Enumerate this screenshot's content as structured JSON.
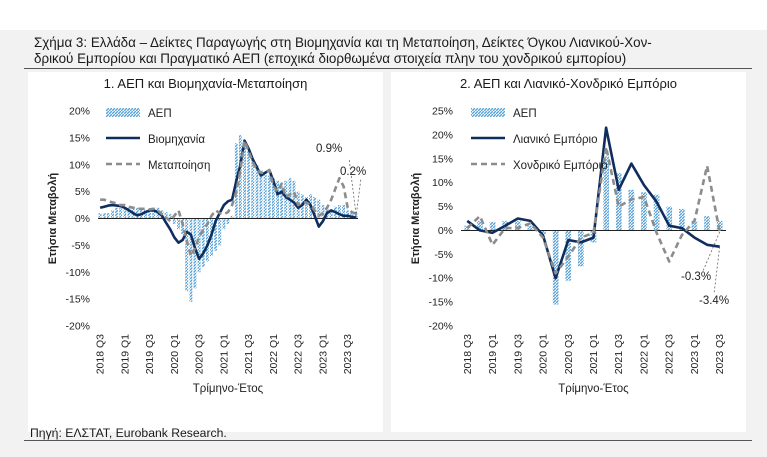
{
  "figure": {
    "title": "Σχήμα 3: Ελλάδα – Δείκτες Παραγωγής στη Βιομηχανία και τη Μεταποίηση, Δείκτες Όγκου Λιανικού-Χον-\nδρικού Εμπορίου και Πραγματικό ΑΕΠ (εποχικά διορθωμένα στοιχεία πλην του χονδρικού εμπορίου)",
    "source": "Πηγή: ΕΛΣΤΑΤ, Eurobank Research."
  },
  "colors": {
    "gdp_bar": "#5aa3d6",
    "line_dark": "#0f2d5f",
    "line_dashed": "#8c8c8c"
  },
  "chart_data": [
    {
      "type": "bar",
      "title": "1. ΑΕΠ και Βιομηχανία-Μεταποίηση",
      "ylabel": "Ετήσια Μεταβολή",
      "xlabel": "Τρίμηνο-Έτος",
      "ylim": [
        -20,
        20
      ],
      "yticks": [
        "-20%",
        "-15%",
        "-10%",
        "-5%",
        "0%",
        "5%",
        "10%",
        "15%",
        "20%"
      ],
      "x_tick_labels": [
        "2018 Q3",
        "2019 Q1",
        "2019 Q3",
        "2020 Q1",
        "2020 Q3",
        "2021 Q1",
        "2021 Q3",
        "2022 Q1",
        "2022 Q3",
        "2023 Q1",
        "2023 Q3"
      ],
      "x": [
        "2018 M7",
        "2018 M8",
        "2018 M9",
        "2018 M10",
        "2018 M11",
        "2018 M12",
        "2019 M1",
        "2019 M2",
        "2019 M3",
        "2019 M4",
        "2019 M5",
        "2019 M6",
        "2019 M7",
        "2019 M8",
        "2019 M9",
        "2019 M10",
        "2019 M11",
        "2019 M12",
        "2020 M1",
        "2020 M2",
        "2020 M3",
        "2020 M4",
        "2020 M5",
        "2020 M6",
        "2020 M7",
        "2020 M8",
        "2020 M9",
        "2020 M10",
        "2020 M11",
        "2020 M12",
        "2021 M1",
        "2021 M2",
        "2021 M3",
        "2021 M4",
        "2021 M5",
        "2021 M6",
        "2021 M7",
        "2021 M8",
        "2021 M9",
        "2021 M10",
        "2021 M11",
        "2021 M12",
        "2022 M1",
        "2022 M2",
        "2022 M3",
        "2022 M4",
        "2022 M5",
        "2022 M6",
        "2022 M7",
        "2022 M8",
        "2022 M9",
        "2022 M10",
        "2022 M11",
        "2022 M12",
        "2023 M1",
        "2023 M2",
        "2023 M3",
        "2023 M4",
        "2023 M5",
        "2023 M6",
        "2023 M7",
        "2023 M8",
        "2023 M9"
      ],
      "series": [
        {
          "name": "ΑΕΠ",
          "kind": "bar",
          "values": [
            1.0,
            1.0,
            1.0,
            1.5,
            2.0,
            2.0,
            2.0,
            2.2,
            2.2,
            2.0,
            1.8,
            1.6,
            1.8,
            1.8,
            2.0,
            1.5,
            1.2,
            0.8,
            -1.0,
            -2.0,
            -3.0,
            -13.5,
            -15.5,
            -13.0,
            -10.0,
            -9.0,
            -8.0,
            -7.0,
            -6.0,
            -5.0,
            -2.0,
            -1.0,
            0.5,
            14.0,
            15.5,
            14.0,
            12.5,
            11.0,
            10.0,
            9.0,
            8.5,
            8.0,
            7.5,
            7.0,
            6.0,
            7.0,
            7.5,
            7.0,
            5.0,
            4.5,
            4.0,
            4.5,
            4.0,
            3.5,
            2.5,
            2.0,
            1.5,
            2.2,
            2.5,
            2.5,
            1.5,
            1.2,
            1.0
          ]
        },
        {
          "name": "Βιομηχανία",
          "kind": "line",
          "values": [
            2.0,
            2.2,
            2.4,
            2.5,
            2.4,
            2.3,
            2.0,
            1.5,
            1.0,
            0.6,
            0.8,
            1.2,
            1.5,
            1.5,
            1.2,
            0.5,
            -0.8,
            -2.0,
            -3.5,
            -4.5,
            -4.0,
            -2.5,
            -3.0,
            -5.5,
            -7.5,
            -6.5,
            -5.0,
            -3.0,
            -0.5,
            1.0,
            2.5,
            3.2,
            3.5,
            7.0,
            10.0,
            14.5,
            13.0,
            11.0,
            9.5,
            8.0,
            8.5,
            9.0,
            7.0,
            4.5,
            5.0,
            4.0,
            3.5,
            3.0,
            2.0,
            2.5,
            3.5,
            2.5,
            0.5,
            -1.5,
            -0.5,
            1.0,
            1.5,
            1.2,
            0.8,
            0.5,
            0.5,
            0.3,
            0.2
          ]
        },
        {
          "name": "Μεταποίηση",
          "kind": "line",
          "values": [
            3.5,
            3.5,
            3.2,
            3.0,
            2.8,
            2.5,
            2.5,
            2.2,
            2.0,
            1.8,
            1.8,
            1.8,
            1.7,
            1.8,
            1.5,
            0.8,
            0.2,
            -0.5,
            0.5,
            1.5,
            -1.0,
            -4.0,
            -7.0,
            -5.5,
            -3.5,
            -2.0,
            -1.0,
            0.5,
            1.5,
            1.0,
            0.8,
            1.2,
            2.5,
            5.0,
            9.0,
            14.5,
            12.5,
            10.5,
            9.0,
            8.5,
            8.5,
            9.0,
            6.0,
            5.0,
            6.5,
            4.0,
            4.5,
            5.0,
            2.5,
            3.0,
            3.0,
            2.5,
            1.5,
            0.5,
            1.0,
            2.0,
            3.5,
            5.5,
            7.5,
            6.0,
            2.0,
            1.2,
            0.9
          ]
        }
      ],
      "annotations": [
        "0.9%",
        "0.2%"
      ]
    },
    {
      "type": "bar",
      "title": "2. ΑΕΠ και Λιανικό-Χονδρικό Εμπόριο",
      "ylabel": "Ετήσια Μεταβολή",
      "xlabel": "Τρίμηνο-Έτος",
      "ylim": [
        -20,
        25
      ],
      "yticks": [
        "-20%",
        "-15%",
        "-10%",
        "-5%",
        "0%",
        "5%",
        "10%",
        "15%",
        "20%",
        "25%"
      ],
      "x_tick_labels": [
        "2018 Q3",
        "2019 Q1",
        "2019 Q3",
        "2020 Q1",
        "2020 Q3",
        "2021 Q1",
        "2021 Q3",
        "2022 Q1",
        "2022 Q3",
        "2023 Q1",
        "2023 Q3"
      ],
      "x": [
        "2018 Q3",
        "2018 Q4",
        "2019 Q1",
        "2019 Q2",
        "2019 Q3",
        "2019 Q4",
        "2020 Q1",
        "2020 Q2",
        "2020 Q3",
        "2020 Q4",
        "2021 Q1",
        "2021 Q2",
        "2021 Q3",
        "2021 Q4",
        "2022 Q1",
        "2022 Q2",
        "2022 Q3",
        "2022 Q4",
        "2023 Q1",
        "2023 Q2",
        "2023 Q3"
      ],
      "series": [
        {
          "name": "ΑΕΠ",
          "kind": "bar",
          "values": [
            1.0,
            2.0,
            1.8,
            2.0,
            2.0,
            1.0,
            -0.8,
            -15.5,
            -10.5,
            -7.5,
            -2.5,
            15.5,
            12.0,
            8.5,
            8.0,
            7.5,
            5.0,
            4.5,
            2.0,
            3.0,
            2.0
          ]
        },
        {
          "name": "Λιανικό Εμπόριο",
          "kind": "line",
          "values": [
            2.0,
            0.0,
            -0.5,
            1.0,
            2.5,
            2.0,
            -1.0,
            -10.0,
            -2.0,
            -2.5,
            -1.5,
            21.5,
            8.5,
            14.0,
            9.5,
            6.0,
            1.0,
            0.5,
            -1.5,
            -3.0,
            -3.4
          ]
        },
        {
          "name": "Χονδρικό Εμπόριο",
          "kind": "line",
          "values": [
            0.5,
            3.0,
            -3.0,
            0.5,
            0.5,
            1.5,
            -1.5,
            -9.0,
            -5.5,
            -1.5,
            -0.5,
            17.5,
            5.0,
            6.5,
            7.0,
            -0.5,
            -6.5,
            -1.0,
            2.0,
            13.5,
            -0.3
          ]
        }
      ],
      "annotations": [
        "-0.3%",
        "-3.4%"
      ]
    }
  ]
}
